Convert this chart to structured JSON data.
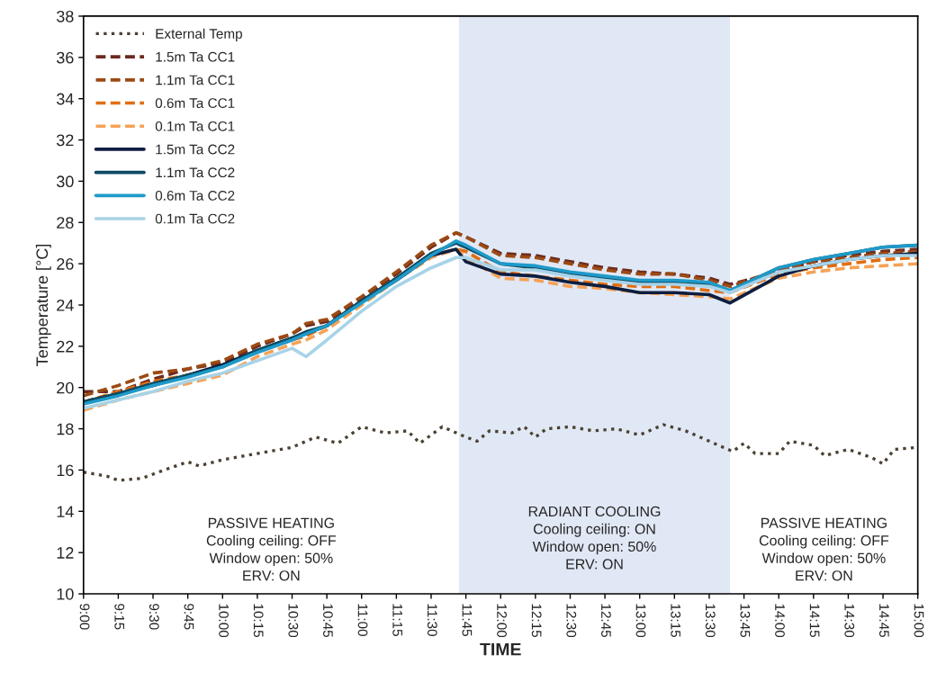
{
  "chart_data": {
    "type": "line",
    "xlabel": "TIME",
    "ylabel": "Temperature [°C]",
    "xlim": [
      9,
      15
    ],
    "ylim": [
      10,
      38
    ],
    "xticks": [
      {
        "value": 9,
        "label": "9:00"
      },
      {
        "value": 9.25,
        "label": "9:15"
      },
      {
        "value": 9.5,
        "label": "9:30"
      },
      {
        "value": 9.75,
        "label": "9:45"
      },
      {
        "value": 10,
        "label": "10:00"
      },
      {
        "value": 10.25,
        "label": "10:15"
      },
      {
        "value": 10.5,
        "label": "10:30"
      },
      {
        "value": 10.75,
        "label": "10:45"
      },
      {
        "value": 11,
        "label": "11:00"
      },
      {
        "value": 11.25,
        "label": "11:15"
      },
      {
        "value": 11.5,
        "label": "11:30"
      },
      {
        "value": 11.75,
        "label": "11:45"
      },
      {
        "value": 12,
        "label": "12:00"
      },
      {
        "value": 12.25,
        "label": "12:15"
      },
      {
        "value": 12.5,
        "label": "12:30"
      },
      {
        "value": 12.75,
        "label": "12:45"
      },
      {
        "value": 13,
        "label": "13:00"
      },
      {
        "value": 13.25,
        "label": "13:15"
      },
      {
        "value": 13.5,
        "label": "13:30"
      },
      {
        "value": 13.75,
        "label": "13:45"
      },
      {
        "value": 14,
        "label": "14:00"
      },
      {
        "value": 14.25,
        "label": "14:15"
      },
      {
        "value": 14.5,
        "label": "14:30"
      },
      {
        "value": 14.75,
        "label": "14:45"
      },
      {
        "value": 15,
        "label": "15:00"
      }
    ],
    "yticks": [
      10,
      12,
      14,
      16,
      18,
      20,
      22,
      24,
      26,
      28,
      30,
      32,
      34,
      36,
      38
    ],
    "grid": false,
    "legend": "top left",
    "x": [
      9.0,
      9.25,
      9.5,
      9.75,
      10.0,
      10.25,
      10.5,
      10.6,
      10.75,
      11.0,
      11.25,
      11.5,
      11.68,
      11.75,
      12.0,
      12.25,
      12.5,
      12.75,
      13.0,
      13.25,
      13.5,
      13.65,
      14.0,
      14.25,
      14.5,
      14.75,
      15.0
    ],
    "series": [
      {
        "name": "External Temp",
        "color": "#4a4232",
        "line_style": "dotted",
        "x": [
          9.0,
          9.17,
          9.25,
          9.42,
          9.58,
          9.75,
          9.83,
          10.0,
          10.25,
          10.5,
          10.67,
          10.83,
          11.0,
          11.17,
          11.33,
          11.42,
          11.58,
          11.75,
          11.83,
          11.92,
          12.08,
          12.17,
          12.25,
          12.33,
          12.5,
          12.67,
          12.83,
          13.0,
          13.17,
          13.33,
          13.5,
          13.67,
          13.75,
          13.83,
          14.0,
          14.08,
          14.25,
          14.33,
          14.5,
          14.67,
          14.75,
          14.83,
          15.0
        ],
        "values": [
          15.9,
          15.7,
          15.5,
          15.6,
          16.0,
          16.4,
          16.2,
          16.5,
          16.8,
          17.1,
          17.6,
          17.3,
          18.1,
          17.8,
          17.9,
          17.3,
          18.1,
          17.6,
          17.4,
          17.9,
          17.8,
          18.1,
          17.6,
          18.0,
          18.1,
          17.9,
          18.0,
          17.7,
          18.2,
          17.9,
          17.4,
          16.9,
          17.3,
          16.8,
          16.8,
          17.4,
          17.2,
          16.7,
          17.0,
          16.6,
          16.3,
          17.0,
          17.1
        ]
      },
      {
        "name": "1.5m Ta CC1",
        "color": "#6b2a1e",
        "line_style": "dashed",
        "values": [
          19.8,
          19.8,
          20.4,
          20.9,
          21.2,
          22.0,
          22.6,
          23.0,
          23.2,
          24.3,
          25.5,
          26.8,
          27.5,
          27.3,
          26.5,
          26.4,
          26.1,
          25.8,
          25.6,
          25.5,
          25.3,
          25.0,
          25.6,
          26.1,
          26.4,
          26.6,
          26.7
        ]
      },
      {
        "name": "1.1m Ta CC1",
        "color": "#9c4a14",
        "line_style": "dashed",
        "values": [
          19.6,
          20.1,
          20.7,
          20.9,
          21.3,
          22.1,
          22.6,
          23.1,
          23.3,
          24.4,
          25.6,
          26.9,
          27.5,
          27.3,
          26.4,
          26.3,
          26.0,
          25.7,
          25.5,
          25.5,
          25.2,
          24.9,
          25.7,
          26.1,
          26.3,
          26.5,
          26.6
        ]
      },
      {
        "name": "0.6m Ta CC1",
        "color": "#e26d10",
        "line_style": "dashed",
        "values": [
          19.3,
          19.8,
          20.3,
          20.6,
          21.0,
          21.8,
          22.3,
          22.5,
          23.0,
          24.2,
          25.3,
          26.4,
          26.7,
          26.6,
          25.6,
          25.4,
          25.2,
          25.0,
          24.9,
          24.9,
          24.7,
          24.6,
          25.5,
          25.8,
          26.0,
          26.2,
          26.3
        ]
      },
      {
        "name": "0.1m Ta CC1",
        "color": "#f5a257",
        "line_style": "dashed",
        "values": [
          18.9,
          19.4,
          19.8,
          20.2,
          20.6,
          21.5,
          22.1,
          22.3,
          22.8,
          24.0,
          25.2,
          26.3,
          26.7,
          26.3,
          25.3,
          25.2,
          24.9,
          24.8,
          24.6,
          24.5,
          24.4,
          24.3,
          25.3,
          25.6,
          25.8,
          25.9,
          26.0
        ]
      },
      {
        "name": "1.5m Ta CC2",
        "color": "#0d1e40",
        "line_style": "solid",
        "values": [
          19.3,
          19.7,
          20.1,
          20.6,
          21.1,
          21.8,
          22.4,
          22.6,
          23.0,
          24.2,
          25.2,
          26.4,
          26.7,
          26.1,
          25.5,
          25.4,
          25.1,
          24.9,
          24.6,
          24.6,
          24.5,
          24.1,
          25.4,
          25.9,
          26.2,
          26.4,
          26.5
        ]
      },
      {
        "name": "1.1m Ta CC2",
        "color": "#0c4a63",
        "line_style": "solid",
        "values": [
          19.3,
          19.7,
          20.2,
          20.6,
          21.0,
          21.8,
          22.4,
          22.7,
          23.0,
          24.2,
          25.3,
          26.5,
          27.0,
          26.8,
          26.0,
          25.8,
          25.5,
          25.3,
          25.1,
          25.1,
          25.0,
          24.7,
          25.8,
          26.2,
          26.5,
          26.8,
          26.9
        ]
      },
      {
        "name": "0.6m Ta CC2",
        "color": "#1f9ac9",
        "line_style": "solid",
        "values": [
          19.2,
          19.6,
          20.1,
          20.5,
          21.0,
          21.7,
          22.3,
          22.6,
          23.0,
          24.1,
          25.2,
          26.4,
          27.1,
          26.9,
          26.0,
          25.9,
          25.6,
          25.4,
          25.2,
          25.2,
          25.1,
          24.7,
          25.8,
          26.2,
          26.5,
          26.8,
          26.9
        ]
      },
      {
        "name": "0.1m Ta CC2",
        "color": "#a8d3e8",
        "line_style": "solid",
        "values": [
          19.0,
          19.4,
          19.8,
          20.3,
          20.7,
          21.3,
          21.9,
          21.5,
          22.3,
          23.7,
          24.9,
          25.8,
          26.3,
          26.3,
          25.7,
          25.7,
          25.4,
          25.2,
          25.0,
          25.0,
          24.9,
          24.6,
          25.6,
          25.9,
          26.2,
          26.4,
          26.4
        ]
      }
    ],
    "bands": [
      {
        "axis": "x",
        "from": 11.7,
        "to": 13.65,
        "color": "#e1e8f5"
      }
    ],
    "annotations": [
      "PASSIVE HEATING\nCooling ceiling: OFF\nWindow open: 50%\nERV: ON",
      "RADIANT COOLING\nCooling ceiling: ON\nWindow open: 50%\nERV: ON",
      "PASSIVE HEATING\nCooling ceiling: OFF\nWindow open: 50%\nERV: ON"
    ]
  }
}
